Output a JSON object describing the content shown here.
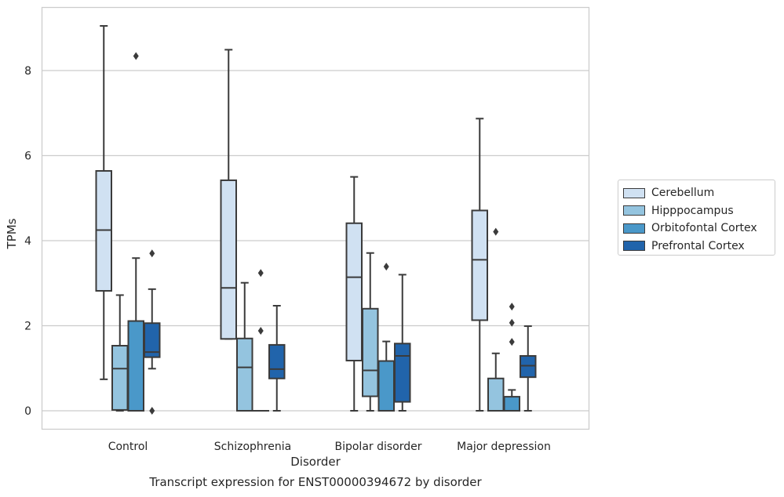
{
  "chart_data": {
    "type": "box",
    "title": "",
    "caption": "Transcript expression for ENST00000394672 by disorder",
    "xlabel": "Disorder",
    "ylabel": "TPMs",
    "ylim": [
      -0.45,
      9.6
    ],
    "yticks": [
      "0",
      "2",
      "4",
      "6",
      "8"
    ],
    "grid": "horizontal",
    "legend_placement": "right",
    "categories": [
      "Control",
      "Schizophrenia",
      "Bipolar disorder",
      "Major depression"
    ],
    "series": [
      {
        "name": "Cerebellum",
        "color": "#d0e1f2",
        "boxes": [
          {
            "min": 0.74,
            "q1": 2.82,
            "median": 4.25,
            "q3": 5.64,
            "max": 9.05,
            "outliers": []
          },
          {
            "min": 1.69,
            "q1": 1.69,
            "median": 2.89,
            "q3": 5.42,
            "max": 8.49,
            "outliers": []
          },
          {
            "min": 0.0,
            "q1": 1.18,
            "median": 3.14,
            "q3": 4.41,
            "max": 5.5,
            "outliers": []
          },
          {
            "min": 0.0,
            "q1": 2.13,
            "median": 3.55,
            "q3": 4.71,
            "max": 6.87,
            "outliers": []
          }
        ]
      },
      {
        "name": "Hipppocampus",
        "color": "#94c4df",
        "boxes": [
          {
            "min": 0.0,
            "q1": 0.02,
            "median": 0.99,
            "q3": 1.53,
            "max": 2.72,
            "outliers": []
          },
          {
            "min": 0.0,
            "q1": 0.0,
            "median": 1.02,
            "q3": 1.7,
            "max": 3.01,
            "outliers": []
          },
          {
            "min": 0.0,
            "q1": 0.34,
            "median": 0.95,
            "q3": 2.4,
            "max": 3.71,
            "outliers": []
          },
          {
            "min": 0.0,
            "q1": 0.0,
            "median": 0.0,
            "q3": 0.76,
            "max": 1.35,
            "outliers": [
              4.21
            ]
          }
        ]
      },
      {
        "name": "Orbitofontal Cortex",
        "color": "#4a98c9",
        "boxes": [
          {
            "min": 0.0,
            "q1": 0.0,
            "median": 0.0,
            "q3": 2.11,
            "max": 3.59,
            "outliers": [
              8.34
            ]
          },
          {
            "min": 0.0,
            "q1": 0.0,
            "median": 0.0,
            "q3": 0.0,
            "max": 0.0,
            "outliers": [
              1.88,
              3.24
            ]
          },
          {
            "min": 0.0,
            "q1": 0.0,
            "median": 0.0,
            "q3": 1.17,
            "max": 1.63,
            "outliers": [
              3.39
            ]
          },
          {
            "min": 0.0,
            "q1": 0.0,
            "median": 0.0,
            "q3": 0.33,
            "max": 0.49,
            "outliers": [
              1.62,
              2.07,
              2.45
            ]
          }
        ]
      },
      {
        "name": "Prefrontal Cortex",
        "color": "#2164ab",
        "boxes": [
          {
            "min": 0.99,
            "q1": 1.26,
            "median": 1.38,
            "q3": 2.06,
            "max": 2.86,
            "outliers": [
              0.0,
              3.7
            ]
          },
          {
            "min": 0.0,
            "q1": 0.76,
            "median": 0.98,
            "q3": 1.55,
            "max": 2.47,
            "outliers": []
          },
          {
            "min": 0.0,
            "q1": 0.21,
            "median": 1.29,
            "q3": 1.58,
            "max": 3.2,
            "outliers": []
          },
          {
            "min": 0.0,
            "q1": 0.79,
            "median": 1.06,
            "q3": 1.29,
            "max": 1.99,
            "outliers": []
          }
        ]
      }
    ]
  }
}
